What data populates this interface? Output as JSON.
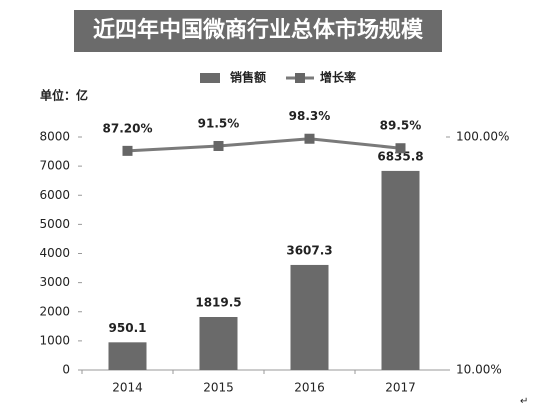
{
  "chart_data": {
    "type": "bar_line",
    "title": "近四年中国微商行业总体市场规模",
    "unit_label": "单位：亿",
    "categories": [
      "2014",
      "2015",
      "2016",
      "2017"
    ],
    "series": [
      {
        "name": "销售额",
        "type": "bar",
        "color": "#6a6a6a",
        "values": [
          950.1,
          1819.5,
          3607.3,
          6835.8
        ]
      },
      {
        "name": "增长率",
        "type": "line",
        "axis": "y2",
        "color": "#7a7a7a",
        "values": [
          87.2,
          91.5,
          98.3,
          89.5
        ],
        "value_labels": [
          "87.20%",
          "91.5%",
          "98.3%",
          "89.5%"
        ]
      }
    ],
    "ylim": [
      0,
      8000
    ],
    "yticks": [
      0,
      1000,
      2000,
      3000,
      4000,
      5000,
      6000,
      7000,
      8000
    ],
    "y2lim": [
      10,
      100
    ],
    "y2scale": "log",
    "y2ticks": [
      {
        "value": 10,
        "label": "10.00%"
      },
      {
        "value": 100,
        "label": "100.00%"
      }
    ],
    "legend": "top",
    "corner_mark": "↵"
  }
}
